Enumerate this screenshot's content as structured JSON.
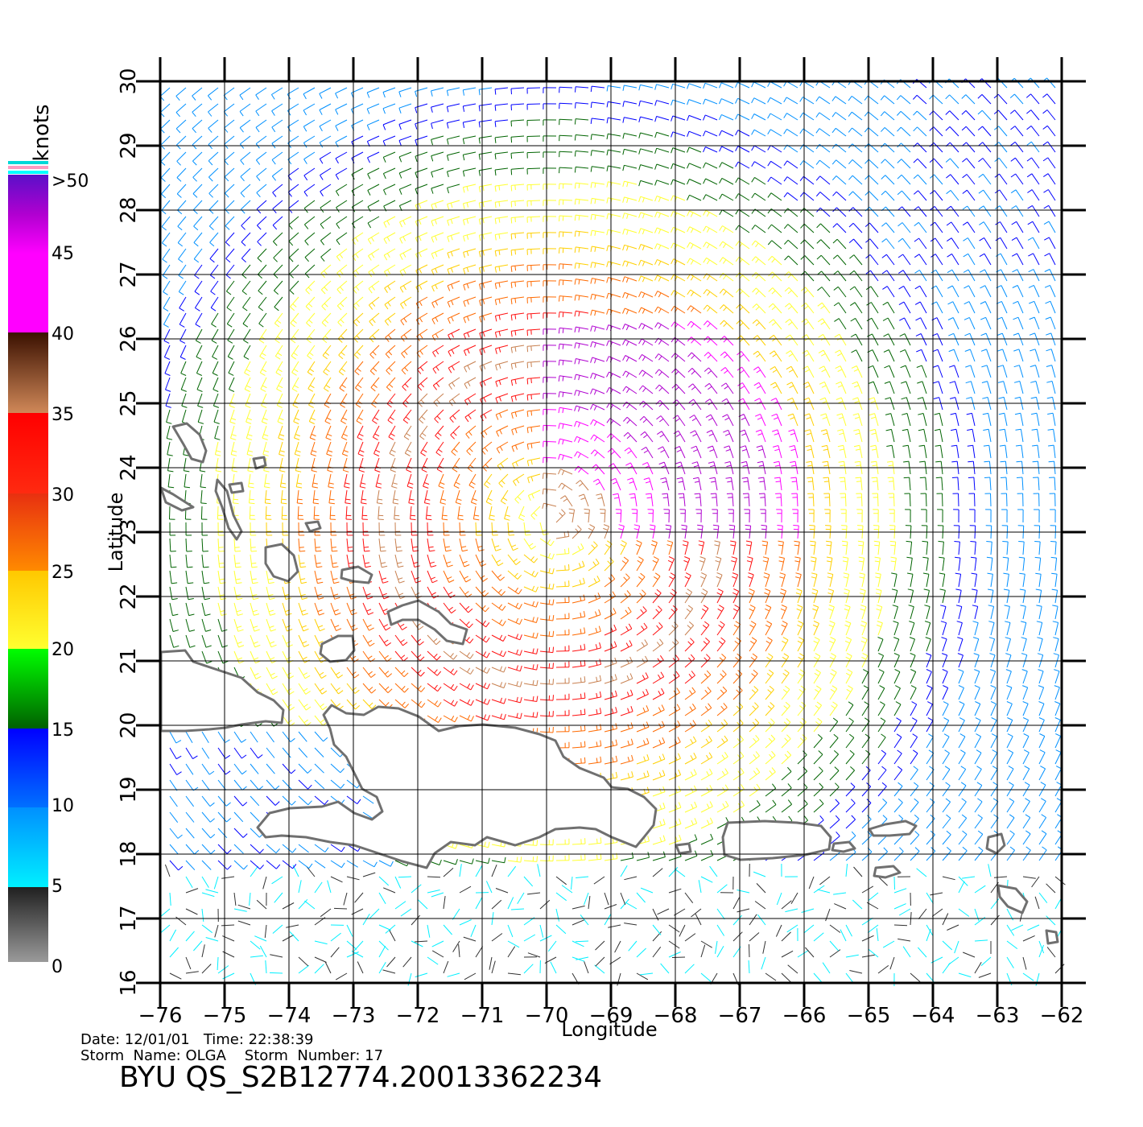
{
  "map": {
    "lon_ticks": [
      "−76",
      "−75",
      "−74",
      "−73",
      "−72",
      "−71",
      "−70",
      "−69",
      "−68",
      "−67",
      "−66",
      "−65",
      "−64",
      "−63",
      "−62"
    ],
    "lat_ticks": [
      "16",
      "17",
      "18",
      "19",
      "20",
      "21",
      "22",
      "23",
      "24",
      "25",
      "26",
      "27",
      "28",
      "29",
      "30"
    ],
    "lon_range": [
      -76,
      -62
    ],
    "lat_range": [
      16,
      30
    ],
    "xlabel": "Longitude",
    "ylabel": "Latitude",
    "storm_center": {
      "lon": -69.9,
      "lat": 23.2
    }
  },
  "colorbar": {
    "unit": "knots",
    "labels": [
      ">50",
      "45",
      "40",
      "35",
      "30",
      "25",
      "20",
      "15",
      "10",
      "5",
      "0"
    ],
    "colors": [
      "#5a10c8",
      "#b000d0",
      "#ff00ff",
      "#4a1808",
      "#c88050",
      "#ff1010",
      "#ff6a00",
      "#ffd000",
      "#ffff30",
      "#00ff00",
      "#006400",
      "#0000ff",
      "#0090ff",
      "#00f0ff",
      "#202020",
      "#909090"
    ]
  },
  "footer": {
    "date_line": "Date: 12/01/01   Time: 22:38:39",
    "storm_line": "Storm  Name: OLGA    Storm  Number: 17",
    "product": "BYU  QS_S2B12774.20013362234"
  }
}
